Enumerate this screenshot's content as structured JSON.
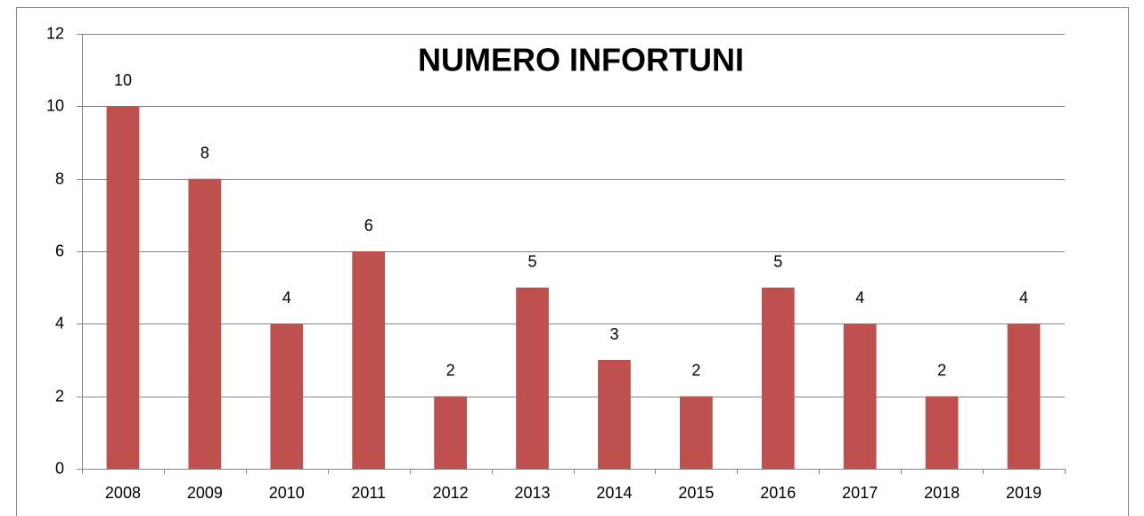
{
  "chart_data": {
    "type": "bar",
    "title": "NUMERO INFORTUNI",
    "categories": [
      "2008",
      "2009",
      "2010",
      "2011",
      "2012",
      "2013",
      "2014",
      "2015",
      "2016",
      "2017",
      "2018",
      "2019"
    ],
    "values": [
      10,
      8,
      4,
      6,
      2,
      5,
      3,
      2,
      5,
      4,
      2,
      4
    ],
    "color": "#c0504d",
    "ylim": [
      0,
      12
    ],
    "yticks": [
      0,
      2,
      4,
      6,
      8,
      10,
      12
    ],
    "grid": true
  }
}
